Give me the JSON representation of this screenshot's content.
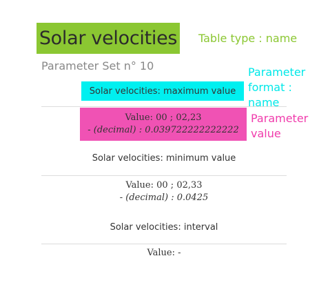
{
  "title": "Solar velocities",
  "parameter_set": "Parameter Set n° 10",
  "annotations": {
    "table_type": "Table type : name",
    "parameter_format": "Parameter format : name",
    "parameter_value": "Parameter value"
  },
  "parameters": [
    {
      "name": "Solar velocities: maximum value",
      "value": "Value: 00 ; 02,23",
      "decimal": "- (decimal) : 0.039722222222222"
    },
    {
      "name": "Solar velocities: minimum value",
      "value": "Value: 00 ; 02,33",
      "decimal": "- (decimal) : 0.0425"
    },
    {
      "name": "Solar velocities: interval",
      "value": "Value: -"
    }
  ],
  "colors": {
    "title_highlight": "#8bc732",
    "format_highlight": "#00f0f0",
    "value_highlight": "#f052b4",
    "table_type_annotation": "#8bc732",
    "format_annotation": "#00e8e8",
    "value_annotation": "#f03cac"
  }
}
